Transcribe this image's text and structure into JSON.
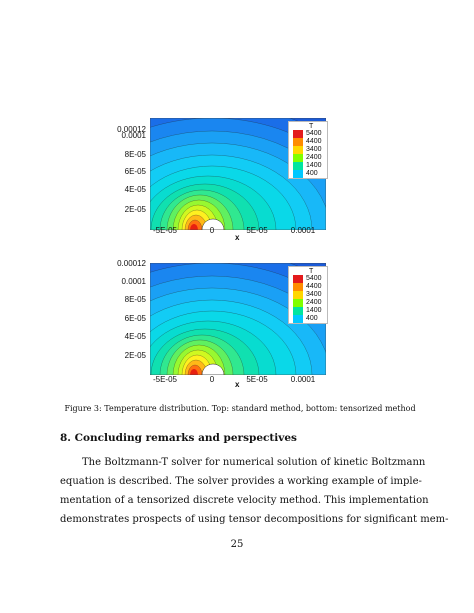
{
  "figures": [
    {
      "name": "top",
      "y_ticks": [
        "0.00012",
        "0.0001",
        "8E-05",
        "6E-05",
        "4E-05",
        "2E-05"
      ],
      "x_ticks": [
        "-5E-05",
        "0",
        "5E-05",
        "0.0001"
      ],
      "x_label": "x",
      "legend_title": "T",
      "legend_levels": [
        "5400",
        "4400",
        "3400",
        "2400",
        "1400",
        "400"
      ]
    },
    {
      "name": "bottom",
      "y_ticks": [
        "0.00012",
        "0.0001",
        "8E-05",
        "6E-05",
        "4E-05",
        "2E-05"
      ],
      "x_ticks": [
        "-5E-05",
        "0",
        "5E-05",
        "0.0001"
      ],
      "x_label": "x",
      "legend_title": "T",
      "legend_levels": [
        "5400",
        "4400",
        "3400",
        "2400",
        "1400",
        "400"
      ]
    }
  ],
  "legend_colors": [
    "#e31a1c",
    "#ff8c00",
    "#ffd700",
    "#7fff00",
    "#00e5a0",
    "#00c8ff"
  ],
  "caption": "Figure 3: Temperature distribution. Top: standard method, bottom: tensorized method",
  "section_title": "8.  Concluding remarks and perspectives",
  "paragraph_lines": [
    "The Boltzmann-T solver for numerical solution of kinetic Boltzmann",
    "equation is described.  The solver provides a working example of imple-",
    "mentation of a tensorized discrete velocity method.  This implementation",
    "demonstrates prospects of using tensor decompositions for significant mem-"
  ],
  "page_number": "25"
}
